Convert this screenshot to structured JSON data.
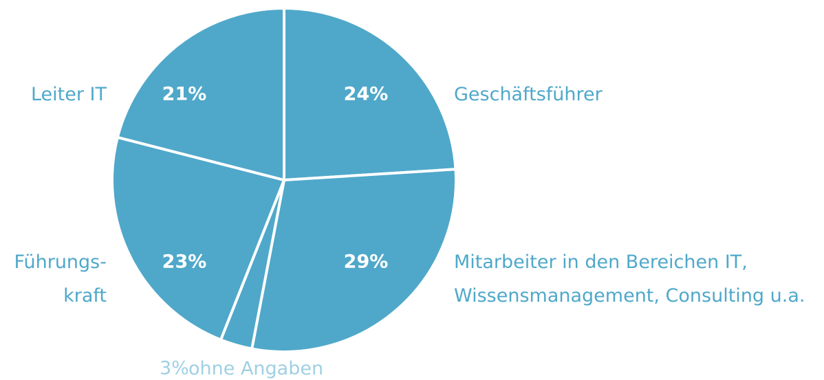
{
  "chart_data": {
    "type": "pie",
    "categories": [
      [
        "Geschäftsführer"
      ],
      [
        "Mitarbeiter in den Bereichen IT,",
        "Wissensmanagement, Consulting u.a."
      ],
      [
        "ohne Angaben"
      ],
      [
        "Führungs-",
        "kraft"
      ],
      [
        "Leiter IT"
      ]
    ],
    "values": [
      24,
      29,
      3,
      23,
      21
    ],
    "value_labels": [
      "24%",
      "29%",
      "3%",
      "23%",
      "21%"
    ],
    "color": "#4fa8c9"
  }
}
